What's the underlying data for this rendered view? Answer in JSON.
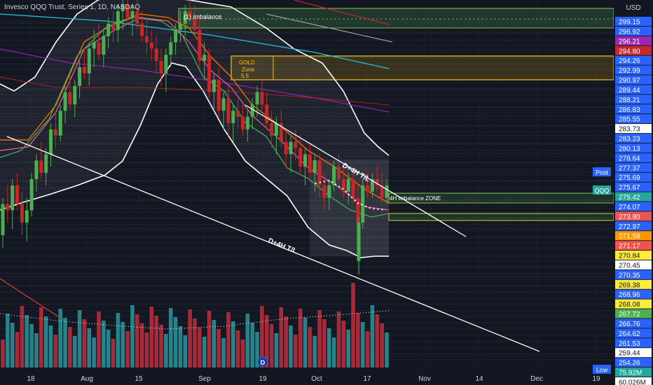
{
  "header": {
    "title": "Invesco QQQ Trust, Series 1, 1D, NASDAQ",
    "currency": "USD"
  },
  "chart_data": {
    "type": "candlestick",
    "symbol": "QQQ",
    "title": "Invesco QQQ Trust, Series 1, 1D, NASDAQ",
    "price_axis": {
      "labels": [
        {
          "value": "299.15",
          "color": "#2962ff"
        },
        {
          "value": "296.92",
          "color": "#2962ff"
        },
        {
          "value": "296.21",
          "color": "#9c27b0"
        },
        {
          "value": "294.80",
          "color": "#c62828"
        },
        {
          "value": "294.26",
          "color": "#2962ff"
        },
        {
          "value": "292.99",
          "color": "#2962ff"
        },
        {
          "value": "290.97",
          "color": "#2962ff"
        },
        {
          "value": "289.44",
          "color": "#2962ff"
        },
        {
          "value": "288.21",
          "color": "#2962ff"
        },
        {
          "value": "286.83",
          "color": "#2962ff"
        },
        {
          "value": "285.55",
          "color": "#2962ff"
        },
        {
          "value": "283.73",
          "color": "#ffffff"
        },
        {
          "value": "283.23",
          "color": "#2962ff"
        },
        {
          "value": "280.13",
          "color": "#2962ff"
        },
        {
          "value": "278.64",
          "color": "#2962ff"
        },
        {
          "value": "277.37",
          "color": "#2962ff"
        },
        {
          "value": "275.69",
          "color": "#2962ff"
        },
        {
          "value": "275.67",
          "color": "#2962ff"
        },
        {
          "value": "275.42",
          "color": "#26a69a"
        },
        {
          "value": "274.07",
          "color": "#2962ff"
        },
        {
          "value": "273.80",
          "color": "#ef5350"
        },
        {
          "value": "272.97",
          "color": "#2962ff"
        },
        {
          "value": "271.58",
          "color": "#ff9800"
        },
        {
          "value": "271.17",
          "color": "#ef5350"
        },
        {
          "value": "270.84",
          "color": "#ffeb3b"
        },
        {
          "value": "270.45",
          "color": "#ffffff"
        },
        {
          "value": "270.35",
          "color": "#2962ff"
        },
        {
          "value": "269.38",
          "color": "#ffeb3b"
        },
        {
          "value": "268.96",
          "color": "#2962ff"
        },
        {
          "value": "268.08",
          "color": "#ffeb3b"
        },
        {
          "value": "267.72",
          "color": "#4caf50"
        },
        {
          "value": "266.76",
          "color": "#2962ff"
        },
        {
          "value": "264.62",
          "color": "#2962ff"
        },
        {
          "value": "261.53",
          "color": "#2962ff"
        },
        {
          "value": "259.44",
          "color": "#ffffff"
        },
        {
          "value": "254.26",
          "color": "#2962ff"
        },
        {
          "value": "75.92M",
          "color": "#26a69a"
        },
        {
          "value": "60.026M",
          "color": "#ffffff"
        }
      ],
      "side_tags": [
        {
          "text": "Post",
          "color": "#2962ff"
        },
        {
          "text": "QQQ",
          "color": "#26a69a"
        },
        {
          "text": "Low",
          "color": "#2962ff"
        }
      ]
    },
    "x_ticks": [
      "18",
      "Aug",
      "15",
      "Sep",
      "19",
      "Oct",
      "17",
      "Nov",
      "14",
      "Dec",
      "19"
    ],
    "annotations": [
      {
        "text": "(1) imbalance"
      },
      {
        "text": "GOLD"
      },
      {
        "text": "Zone"
      },
      {
        "text": "5.5"
      },
      {
        "text": "D+4H T/L"
      },
      {
        "text": "4H imbalance  ZONE"
      },
      {
        "text": "D+4H T/L"
      }
    ],
    "candles_ohlc": [
      [
        266,
        272,
        264,
        271
      ],
      [
        271,
        274,
        268,
        270
      ],
      [
        270,
        275,
        267,
        274
      ],
      [
        274,
        276,
        270,
        271
      ],
      [
        271,
        273,
        266,
        268
      ],
      [
        268,
        272,
        265,
        270
      ],
      [
        270,
        276,
        269,
        275
      ],
      [
        275,
        279,
        273,
        278
      ],
      [
        278,
        281,
        275,
        276
      ],
      [
        276,
        280,
        274,
        279
      ],
      [
        279,
        284,
        277,
        283
      ],
      [
        283,
        286,
        280,
        282
      ],
      [
        282,
        287,
        281,
        286
      ],
      [
        286,
        290,
        284,
        289
      ],
      [
        289,
        292,
        286,
        287
      ],
      [
        287,
        291,
        285,
        290
      ],
      [
        290,
        294,
        288,
        293
      ],
      [
        293,
        296,
        291,
        292
      ],
      [
        292,
        297,
        290,
        296
      ],
      [
        296,
        299,
        293,
        297
      ],
      [
        297,
        300,
        294,
        295
      ],
      [
        295,
        299,
        293,
        298
      ],
      [
        298,
        301,
        296,
        300
      ],
      [
        300,
        302,
        297,
        299
      ],
      [
        299,
        303,
        297,
        302
      ],
      [
        302,
        304,
        299,
        303
      ],
      [
        303,
        304,
        300,
        301
      ],
      [
        301,
        303,
        298,
        302
      ],
      [
        302,
        304,
        299,
        300
      ],
      [
        300,
        302,
        297,
        298
      ],
      [
        298,
        301,
        295,
        297
      ],
      [
        297,
        299,
        294,
        296
      ],
      [
        296,
        298,
        292,
        294
      ],
      [
        294,
        296,
        290,
        292
      ],
      [
        292,
        296,
        289,
        295
      ],
      [
        295,
        298,
        293,
        297
      ],
      [
        297,
        300,
        295,
        299
      ],
      [
        299,
        302,
        297,
        300
      ],
      [
        300,
        303,
        298,
        302
      ],
      [
        302,
        304,
        300,
        301
      ],
      [
        301,
        303,
        298,
        299
      ],
      [
        299,
        301,
        293,
        294
      ],
      [
        294,
        297,
        291,
        295
      ],
      [
        295,
        296,
        288,
        289
      ],
      [
        289,
        292,
        286,
        291
      ],
      [
        291,
        293,
        285,
        286
      ],
      [
        286,
        289,
        283,
        288
      ],
      [
        288,
        290,
        282,
        284
      ],
      [
        284,
        287,
        281,
        286
      ],
      [
        286,
        288,
        283,
        285
      ],
      [
        285,
        287,
        282,
        283
      ],
      [
        283,
        286,
        281,
        285
      ],
      [
        285,
        288,
        283,
        287
      ],
      [
        287,
        290,
        285,
        289
      ],
      [
        289,
        291,
        286,
        287
      ],
      [
        287,
        289,
        283,
        284
      ],
      [
        284,
        286,
        280,
        282
      ],
      [
        282,
        285,
        279,
        284
      ],
      [
        284,
        286,
        280,
        281
      ],
      [
        281,
        283,
        277,
        279
      ],
      [
        279,
        282,
        276,
        281
      ],
      [
        281,
        283,
        278,
        280
      ],
      [
        280,
        282,
        276,
        277
      ],
      [
        277,
        280,
        274,
        279
      ],
      [
        279,
        281,
        275,
        276
      ],
      [
        276,
        279,
        273,
        278
      ],
      [
        278,
        279,
        272,
        274
      ],
      [
        274,
        276,
        270,
        272
      ],
      [
        272,
        275,
        270,
        274
      ],
      [
        274,
        278,
        273,
        277
      ],
      [
        277,
        279,
        274,
        275
      ],
      [
        275,
        277,
        272,
        273
      ],
      [
        273,
        276,
        271,
        275
      ],
      [
        275,
        277,
        271,
        272
      ],
      [
        272,
        274,
        264,
        268
      ],
      [
        268,
        275,
        267,
        274
      ],
      [
        274,
        276,
        272,
        273
      ],
      [
        273,
        276,
        272,
        275
      ],
      [
        275,
        277,
        273,
        274
      ],
      [
        274,
        276,
        271,
        272
      ],
      [
        272,
        275,
        271,
        274
      ]
    ],
    "volume": [
      "r",
      "g",
      "g",
      "r",
      "r",
      "g",
      "g",
      "g",
      "r",
      "g",
      "g",
      "r",
      "g",
      "g",
      "r",
      "g",
      "g",
      "r",
      "g",
      "g",
      "r",
      "g",
      "g",
      "r",
      "g",
      "g",
      "r",
      "g",
      "r",
      "r",
      "r",
      "r",
      "r",
      "r",
      "g",
      "g",
      "g",
      "g",
      "g",
      "r",
      "r",
      "r",
      "g",
      "r",
      "g",
      "r",
      "g",
      "r",
      "g",
      "r",
      "r",
      "g",
      "g",
      "g",
      "r",
      "r",
      "r",
      "g",
      "r",
      "r",
      "g",
      "r",
      "r",
      "g",
      "r",
      "g",
      "r",
      "r",
      "g",
      "g",
      "r",
      "r",
      "g",
      "r",
      "r",
      "g",
      "r",
      "g",
      "r",
      "r",
      "g"
    ],
    "legend": "none",
    "grid": true
  }
}
